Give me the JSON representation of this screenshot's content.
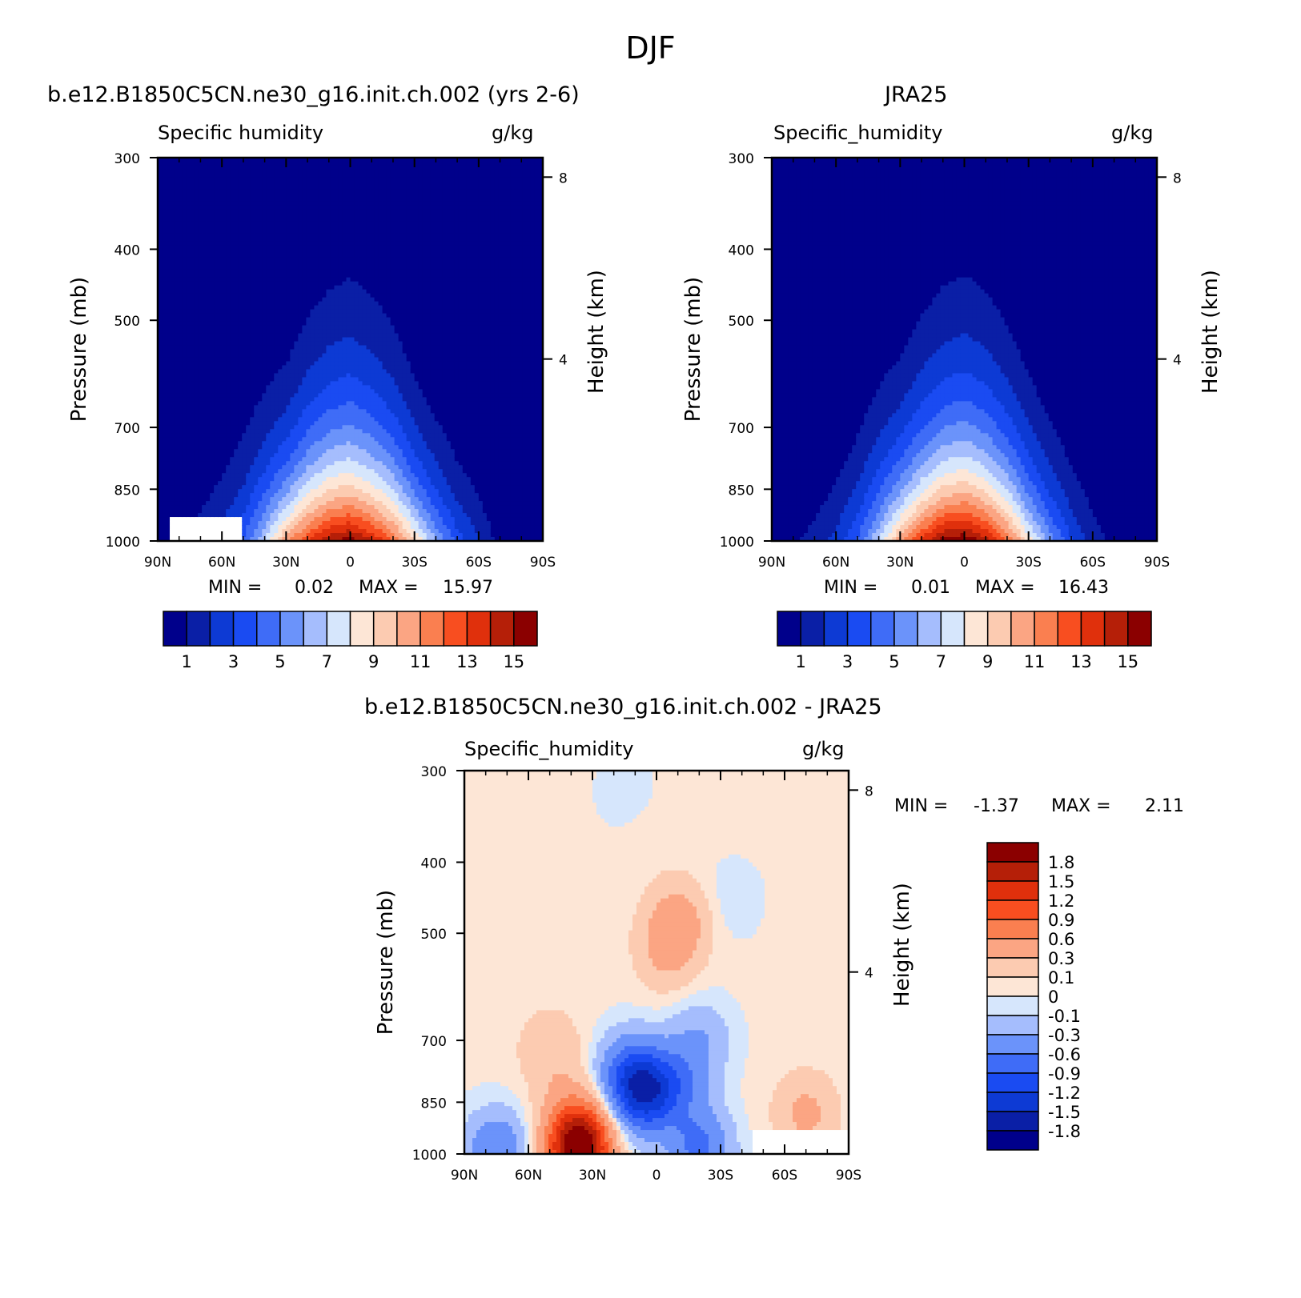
{
  "page": {
    "title": "DJF"
  },
  "panels": [
    {
      "title": "b.e12.B1850C5CN.ne30_g16.init.ch.002 (yrs 2-6)",
      "left_label": "Specific humidity",
      "right_label": "g/kg",
      "min_max": {
        "min_label": "MIN =",
        "min_value": "0.02",
        "max_label": "MAX =",
        "max_value": "15.97"
      }
    },
    {
      "title": "JRA25",
      "left_label": "Specific_humidity",
      "right_label": "g/kg",
      "min_max": {
        "min_label": "MIN =",
        "min_value": "0.01",
        "max_label": "MAX =",
        "max_value": "16.43"
      }
    },
    {
      "title": "b.e12.B1850C5CN.ne30_g16.init.ch.002 - JRA25",
      "left_label": "Specific_humidity",
      "right_label": "g/kg",
      "min_max": {
        "min_label": "MIN =",
        "min_value": "-1.37",
        "max_label": "MAX =",
        "max_value": "2.11"
      }
    }
  ],
  "chart_data": [
    {
      "type": "contour",
      "title": "b.e12.B1850C5CN.ne30_g16.init.ch.002 (yrs 2-6)",
      "variable": "Specific humidity",
      "units": "g/kg",
      "xlabel": "",
      "ylabel": "Pressure (mb)",
      "ylabel_right": "Height (km)",
      "x_ticks": [
        "90N",
        "60N",
        "30N",
        "0",
        "30S",
        "60S",
        "90S"
      ],
      "y_ticks": [
        300,
        400,
        500,
        700,
        850,
        1000
      ],
      "y_ticks_right": [
        8,
        4
      ],
      "ylim": [
        1000,
        300
      ],
      "y_scale": "log",
      "colorbar_labels": [
        "1",
        "3",
        "5",
        "7",
        "9",
        "11",
        "13",
        "15"
      ],
      "min": 0.02,
      "max": 15.97,
      "profile": {
        "lat": [
          -90,
          -70,
          -60,
          -50,
          -40,
          -30,
          -20,
          -10,
          0,
          10,
          20,
          30,
          40,
          50,
          60,
          70,
          80,
          90
        ],
        "q_surface": [
          0.5,
          1.0,
          2.5,
          4.0,
          6.5,
          9.5,
          12.5,
          14.5,
          15.9,
          15.3,
          13.5,
          11.0,
          7.5,
          4.5,
          3.0,
          2.0,
          1.3,
          1.0
        ],
        "scale_height_factor": [
          0.22,
          0.22,
          0.24,
          0.24,
          0.25,
          0.27,
          0.31,
          0.33,
          0.34,
          0.33,
          0.31,
          0.27,
          0.28,
          0.28,
          0.26,
          0.25,
          0.25,
          0.25
        ]
      },
      "missing_region": {
        "lat_from": 50,
        "lat_to": 85,
        "p_from": 930,
        "p_to": 1000
      }
    },
    {
      "type": "contour",
      "title": "JRA25",
      "variable": "Specific_humidity",
      "units": "g/kg",
      "xlabel": "",
      "ylabel": "Pressure (mb)",
      "ylabel_right": "Height (km)",
      "x_ticks": [
        "90N",
        "60N",
        "30N",
        "0",
        "30S",
        "60S",
        "90S"
      ],
      "y_ticks": [
        300,
        400,
        500,
        700,
        850,
        1000
      ],
      "y_ticks_right": [
        8,
        4
      ],
      "ylim": [
        1000,
        300
      ],
      "y_scale": "log",
      "colorbar_labels": [
        "1",
        "3",
        "5",
        "7",
        "9",
        "11",
        "13",
        "15"
      ],
      "min": 0.01,
      "max": 16.43,
      "profile": {
        "lat": [
          -90,
          -70,
          -60,
          -50,
          -40,
          -30,
          -20,
          -10,
          0,
          10,
          20,
          30,
          40,
          50,
          60,
          70,
          80,
          90
        ],
        "q_surface": [
          0.4,
          1.0,
          2.0,
          3.5,
          6.0,
          9.0,
          12.5,
          15.0,
          16.4,
          15.8,
          13.8,
          11.0,
          7.5,
          4.5,
          2.8,
          1.8,
          1.2,
          0.8
        ],
        "scale_height_factor": [
          0.22,
          0.22,
          0.24,
          0.25,
          0.26,
          0.28,
          0.31,
          0.33,
          0.34,
          0.33,
          0.31,
          0.28,
          0.29,
          0.28,
          0.26,
          0.25,
          0.25,
          0.25
        ]
      },
      "missing_region": null
    },
    {
      "type": "contour",
      "title": "b.e12.B1850C5CN.ne30_g16.init.ch.002 - JRA25",
      "variable": "Specific_humidity",
      "units": "g/kg",
      "xlabel": "",
      "ylabel": "Pressure (mb)",
      "ylabel_right": "Height (km)",
      "x_ticks": [
        "90N",
        "60N",
        "30N",
        "0",
        "30S",
        "60S",
        "90S"
      ],
      "y_ticks": [
        300,
        400,
        500,
        700,
        850,
        1000
      ],
      "y_ticks_right": [
        8,
        4
      ],
      "ylim": [
        1000,
        300
      ],
      "y_scale": "log",
      "colorbar_labels": [
        "1.8",
        "1.5",
        "1.2",
        "0.9",
        "0.6",
        "0.3",
        "0.1",
        "0",
        "-0.1",
        "-0.3",
        "-0.6",
        "-0.9",
        "-1.2",
        "-1.5",
        "-1.8"
      ],
      "min": -1.37,
      "max": 2.11,
      "anomalies": [
        {
          "lat": 0,
          "p": 380,
          "value": 0.03
        },
        {
          "lat": -10,
          "p": 480,
          "value": 0.4
        },
        {
          "lat": -5,
          "p": 530,
          "value": 0.3
        },
        {
          "lat": 50,
          "p": 720,
          "value": 0.25
        },
        {
          "lat": 42,
          "p": 860,
          "value": 0.2
        },
        {
          "lat": 35,
          "p": 950,
          "value": 0.7
        },
        {
          "lat": 37,
          "p": 990,
          "value": 1.6
        },
        {
          "lat": 12,
          "p": 780,
          "value": -0.8
        },
        {
          "lat": 5,
          "p": 830,
          "value": -1.1
        },
        {
          "lat": -10,
          "p": 800,
          "value": -0.5
        },
        {
          "lat": -20,
          "p": 700,
          "value": -0.3
        },
        {
          "lat": -20,
          "p": 980,
          "value": -0.7
        },
        {
          "lat": 75,
          "p": 990,
          "value": -0.6
        },
        {
          "lat": -70,
          "p": 880,
          "value": 0.35
        },
        {
          "lat": -35,
          "p": 450,
          "value": -0.08
        },
        {
          "lat": 15,
          "p": 320,
          "value": -0.06
        }
      ],
      "missing_region": {
        "lat_from": -45,
        "lat_to": -90,
        "p_from": 930,
        "p_to": 1000
      }
    }
  ],
  "colors": {
    "humidity_levels": [
      "#00008b",
      "#0a1fa6",
      "#0d3ad4",
      "#1a4bf2",
      "#3f6cf7",
      "#6b93fa",
      "#a5bdfd",
      "#d6e6fc",
      "#fde6d6",
      "#fccbb1",
      "#fba583",
      "#fa7f50",
      "#f84e20",
      "#e0300c",
      "#b51f08",
      "#8b0000"
    ],
    "diff_levels": [
      "#00008b",
      "#0a1fa6",
      "#0d3ad4",
      "#1a4bf2",
      "#3f6cf7",
      "#6b93fa",
      "#a5bdfd",
      "#d6e6fc",
      "#fde6d6",
      "#fccbb1",
      "#fba583",
      "#fa7f50",
      "#f84e20",
      "#e0300c",
      "#b51f08",
      "#8b0000"
    ]
  }
}
